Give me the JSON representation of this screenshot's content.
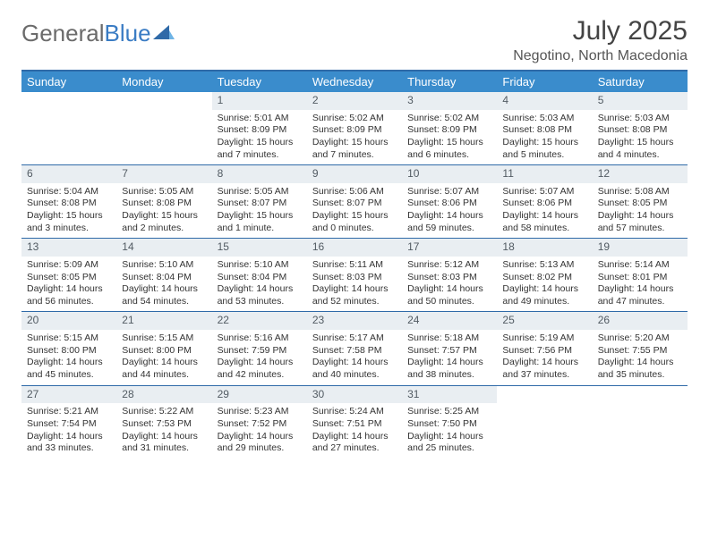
{
  "logo": {
    "text_gray": "General",
    "text_blue": "Blue"
  },
  "title": "July 2025",
  "location": "Negotino, North Macedonia",
  "day_headers": [
    "Sunday",
    "Monday",
    "Tuesday",
    "Wednesday",
    "Thursday",
    "Friday",
    "Saturday"
  ],
  "colors": {
    "header_bg": "#3a8ccc",
    "border": "#2f6aa8",
    "daynum_bg": "#e9eef2",
    "logo_gray": "#6b6b6b",
    "logo_blue": "#3a7cc4"
  },
  "weeks": [
    [
      {
        "n": "",
        "sr": "",
        "ss": "",
        "dl": ""
      },
      {
        "n": "",
        "sr": "",
        "ss": "",
        "dl": ""
      },
      {
        "n": "1",
        "sr": "Sunrise: 5:01 AM",
        "ss": "Sunset: 8:09 PM",
        "dl": "Daylight: 15 hours and 7 minutes."
      },
      {
        "n": "2",
        "sr": "Sunrise: 5:02 AM",
        "ss": "Sunset: 8:09 PM",
        "dl": "Daylight: 15 hours and 7 minutes."
      },
      {
        "n": "3",
        "sr": "Sunrise: 5:02 AM",
        "ss": "Sunset: 8:09 PM",
        "dl": "Daylight: 15 hours and 6 minutes."
      },
      {
        "n": "4",
        "sr": "Sunrise: 5:03 AM",
        "ss": "Sunset: 8:08 PM",
        "dl": "Daylight: 15 hours and 5 minutes."
      },
      {
        "n": "5",
        "sr": "Sunrise: 5:03 AM",
        "ss": "Sunset: 8:08 PM",
        "dl": "Daylight: 15 hours and 4 minutes."
      }
    ],
    [
      {
        "n": "6",
        "sr": "Sunrise: 5:04 AM",
        "ss": "Sunset: 8:08 PM",
        "dl": "Daylight: 15 hours and 3 minutes."
      },
      {
        "n": "7",
        "sr": "Sunrise: 5:05 AM",
        "ss": "Sunset: 8:08 PM",
        "dl": "Daylight: 15 hours and 2 minutes."
      },
      {
        "n": "8",
        "sr": "Sunrise: 5:05 AM",
        "ss": "Sunset: 8:07 PM",
        "dl": "Daylight: 15 hours and 1 minute."
      },
      {
        "n": "9",
        "sr": "Sunrise: 5:06 AM",
        "ss": "Sunset: 8:07 PM",
        "dl": "Daylight: 15 hours and 0 minutes."
      },
      {
        "n": "10",
        "sr": "Sunrise: 5:07 AM",
        "ss": "Sunset: 8:06 PM",
        "dl": "Daylight: 14 hours and 59 minutes."
      },
      {
        "n": "11",
        "sr": "Sunrise: 5:07 AM",
        "ss": "Sunset: 8:06 PM",
        "dl": "Daylight: 14 hours and 58 minutes."
      },
      {
        "n": "12",
        "sr": "Sunrise: 5:08 AM",
        "ss": "Sunset: 8:05 PM",
        "dl": "Daylight: 14 hours and 57 minutes."
      }
    ],
    [
      {
        "n": "13",
        "sr": "Sunrise: 5:09 AM",
        "ss": "Sunset: 8:05 PM",
        "dl": "Daylight: 14 hours and 56 minutes."
      },
      {
        "n": "14",
        "sr": "Sunrise: 5:10 AM",
        "ss": "Sunset: 8:04 PM",
        "dl": "Daylight: 14 hours and 54 minutes."
      },
      {
        "n": "15",
        "sr": "Sunrise: 5:10 AM",
        "ss": "Sunset: 8:04 PM",
        "dl": "Daylight: 14 hours and 53 minutes."
      },
      {
        "n": "16",
        "sr": "Sunrise: 5:11 AM",
        "ss": "Sunset: 8:03 PM",
        "dl": "Daylight: 14 hours and 52 minutes."
      },
      {
        "n": "17",
        "sr": "Sunrise: 5:12 AM",
        "ss": "Sunset: 8:03 PM",
        "dl": "Daylight: 14 hours and 50 minutes."
      },
      {
        "n": "18",
        "sr": "Sunrise: 5:13 AM",
        "ss": "Sunset: 8:02 PM",
        "dl": "Daylight: 14 hours and 49 minutes."
      },
      {
        "n": "19",
        "sr": "Sunrise: 5:14 AM",
        "ss": "Sunset: 8:01 PM",
        "dl": "Daylight: 14 hours and 47 minutes."
      }
    ],
    [
      {
        "n": "20",
        "sr": "Sunrise: 5:15 AM",
        "ss": "Sunset: 8:00 PM",
        "dl": "Daylight: 14 hours and 45 minutes."
      },
      {
        "n": "21",
        "sr": "Sunrise: 5:15 AM",
        "ss": "Sunset: 8:00 PM",
        "dl": "Daylight: 14 hours and 44 minutes."
      },
      {
        "n": "22",
        "sr": "Sunrise: 5:16 AM",
        "ss": "Sunset: 7:59 PM",
        "dl": "Daylight: 14 hours and 42 minutes."
      },
      {
        "n": "23",
        "sr": "Sunrise: 5:17 AM",
        "ss": "Sunset: 7:58 PM",
        "dl": "Daylight: 14 hours and 40 minutes."
      },
      {
        "n": "24",
        "sr": "Sunrise: 5:18 AM",
        "ss": "Sunset: 7:57 PM",
        "dl": "Daylight: 14 hours and 38 minutes."
      },
      {
        "n": "25",
        "sr": "Sunrise: 5:19 AM",
        "ss": "Sunset: 7:56 PM",
        "dl": "Daylight: 14 hours and 37 minutes."
      },
      {
        "n": "26",
        "sr": "Sunrise: 5:20 AM",
        "ss": "Sunset: 7:55 PM",
        "dl": "Daylight: 14 hours and 35 minutes."
      }
    ],
    [
      {
        "n": "27",
        "sr": "Sunrise: 5:21 AM",
        "ss": "Sunset: 7:54 PM",
        "dl": "Daylight: 14 hours and 33 minutes."
      },
      {
        "n": "28",
        "sr": "Sunrise: 5:22 AM",
        "ss": "Sunset: 7:53 PM",
        "dl": "Daylight: 14 hours and 31 minutes."
      },
      {
        "n": "29",
        "sr": "Sunrise: 5:23 AM",
        "ss": "Sunset: 7:52 PM",
        "dl": "Daylight: 14 hours and 29 minutes."
      },
      {
        "n": "30",
        "sr": "Sunrise: 5:24 AM",
        "ss": "Sunset: 7:51 PM",
        "dl": "Daylight: 14 hours and 27 minutes."
      },
      {
        "n": "31",
        "sr": "Sunrise: 5:25 AM",
        "ss": "Sunset: 7:50 PM",
        "dl": "Daylight: 14 hours and 25 minutes."
      },
      {
        "n": "",
        "sr": "",
        "ss": "",
        "dl": ""
      },
      {
        "n": "",
        "sr": "",
        "ss": "",
        "dl": ""
      }
    ]
  ]
}
